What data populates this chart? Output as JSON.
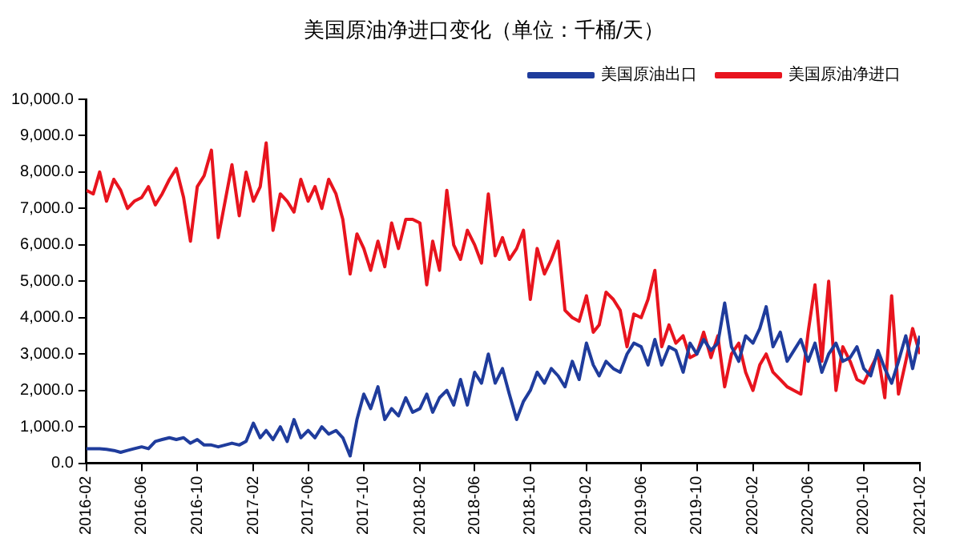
{
  "chart_data": {
    "type": "line",
    "title": "美国原油净进口变化（单位：千桶/天）",
    "x": [
      "2016-02-01",
      "2016-02-16",
      "2016-03-01",
      "2016-03-16",
      "2016-04-01",
      "2016-04-16",
      "2016-05-01",
      "2016-05-16",
      "2016-06-01",
      "2016-06-16",
      "2016-07-01",
      "2016-07-16",
      "2016-08-01",
      "2016-08-16",
      "2016-09-01",
      "2016-09-16",
      "2016-10-01",
      "2016-10-16",
      "2016-11-01",
      "2016-11-16",
      "2016-12-01",
      "2016-12-16",
      "2017-01-01",
      "2017-01-16",
      "2017-02-01",
      "2017-02-16",
      "2017-03-01",
      "2017-03-16",
      "2017-04-01",
      "2017-04-16",
      "2017-05-01",
      "2017-05-16",
      "2017-06-01",
      "2017-06-16",
      "2017-07-01",
      "2017-07-16",
      "2017-08-01",
      "2017-08-16",
      "2017-09-01",
      "2017-09-16",
      "2017-10-01",
      "2017-10-16",
      "2017-11-01",
      "2017-11-16",
      "2017-12-01",
      "2017-12-16",
      "2018-01-01",
      "2018-01-16",
      "2018-02-01",
      "2018-02-16",
      "2018-03-01",
      "2018-03-16",
      "2018-04-01",
      "2018-04-16",
      "2018-05-01",
      "2018-05-16",
      "2018-06-01",
      "2018-06-16",
      "2018-07-01",
      "2018-07-16",
      "2018-08-01",
      "2018-08-16",
      "2018-09-01",
      "2018-09-16",
      "2018-10-01",
      "2018-10-16",
      "2018-11-01",
      "2018-11-16",
      "2018-12-01",
      "2018-12-16",
      "2019-01-01",
      "2019-01-16",
      "2019-02-01",
      "2019-02-16",
      "2019-03-01",
      "2019-03-16",
      "2019-04-01",
      "2019-04-16",
      "2019-05-01",
      "2019-05-16",
      "2019-06-01",
      "2019-06-16",
      "2019-07-01",
      "2019-07-16",
      "2019-08-01",
      "2019-08-16",
      "2019-09-01",
      "2019-09-16",
      "2019-10-01",
      "2019-10-16",
      "2019-11-01",
      "2019-11-16",
      "2019-12-01",
      "2019-12-16",
      "2020-01-01",
      "2020-01-16",
      "2020-02-01",
      "2020-02-16",
      "2020-03-01",
      "2020-03-16",
      "2020-04-01",
      "2020-04-16",
      "2020-05-01",
      "2020-05-16",
      "2020-06-01",
      "2020-06-16",
      "2020-07-01",
      "2020-07-16",
      "2020-08-01",
      "2020-08-16",
      "2020-09-01",
      "2020-09-16",
      "2020-10-01",
      "2020-10-16",
      "2020-11-01",
      "2020-11-16",
      "2020-12-01",
      "2020-12-16",
      "2021-01-01",
      "2021-01-16",
      "2021-02-01"
    ],
    "series": [
      {
        "name": "美国原油出口",
        "color": "#1f3c9c",
        "values": [
          400,
          400,
          400,
          380,
          350,
          300,
          350,
          400,
          450,
          400,
          600,
          650,
          700,
          650,
          700,
          550,
          650,
          500,
          500,
          450,
          500,
          550,
          500,
          600,
          1100,
          700,
          900,
          650,
          1000,
          600,
          1200,
          700,
          900,
          700,
          1000,
          800,
          900,
          700,
          200,
          1200,
          1900,
          1500,
          2100,
          1200,
          1500,
          1300,
          1800,
          1400,
          1500,
          1900,
          1400,
          1800,
          2000,
          1600,
          2300,
          1600,
          2500,
          2200,
          3000,
          2200,
          2600,
          1900,
          1200,
          1700,
          2000,
          2500,
          2200,
          2600,
          2400,
          2100,
          2800,
          2300,
          3300,
          2700,
          2400,
          2800,
          2600,
          2500,
          3000,
          3300,
          3200,
          2700,
          3400,
          2700,
          3200,
          3100,
          2500,
          3300,
          3000,
          3400,
          3100,
          3300,
          4400,
          3200,
          2800,
          3500,
          3300,
          3700,
          4300,
          3200,
          3600,
          2800,
          3100,
          3400,
          2800,
          3300,
          2500,
          3000,
          3300,
          2800,
          2900,
          3200,
          2600,
          2400,
          3100,
          2600,
          2200,
          2800,
          3500,
          2600,
          3500
        ]
      },
      {
        "name": "美国原油净进口",
        "color": "#e8141e",
        "values": [
          7500,
          7400,
          8000,
          7200,
          7800,
          7500,
          7000,
          7200,
          7300,
          7600,
          7100,
          7400,
          7800,
          8100,
          7300,
          6100,
          7600,
          7900,
          8600,
          6200,
          7200,
          8200,
          6800,
          8000,
          7200,
          7600,
          8800,
          6400,
          7400,
          7200,
          6900,
          7800,
          7200,
          7600,
          7000,
          7800,
          7400,
          6700,
          5200,
          6300,
          5900,
          5300,
          6100,
          5400,
          6600,
          5900,
          6700,
          6700,
          6600,
          4900,
          6100,
          5300,
          7500,
          6000,
          5600,
          6400,
          6000,
          5500,
          7400,
          5700,
          6200,
          5600,
          5900,
          6400,
          4500,
          5900,
          5200,
          5600,
          6100,
          4200,
          4000,
          3900,
          4600,
          3600,
          3800,
          4700,
          4500,
          4200,
          3200,
          4100,
          4000,
          4500,
          5300,
          3200,
          3800,
          3300,
          3500,
          2900,
          3000,
          3600,
          2900,
          3500,
          2100,
          3000,
          3300,
          2500,
          2000,
          2700,
          3000,
          2500,
          2300,
          2100,
          2000,
          1900,
          3600,
          4900,
          2800,
          5000,
          2000,
          3200,
          2800,
          2300,
          2200,
          2600,
          3000,
          1800,
          4600,
          1900,
          2800,
          3700,
          3000
        ]
      }
    ],
    "xlim": [
      "2016-02",
      "2021-02"
    ],
    "xticks": [
      "2016-02",
      "2016-06",
      "2016-10",
      "2017-02",
      "2017-06",
      "2017-10",
      "2018-02",
      "2018-06",
      "2018-10",
      "2019-02",
      "2019-06",
      "2019-10",
      "2020-02",
      "2020-06",
      "2020-10",
      "2021-02"
    ],
    "ylim": [
      0,
      10000
    ],
    "yticks": [
      {
        "value": 0,
        "label": "0.0"
      },
      {
        "value": 1000,
        "label": "1,000.0"
      },
      {
        "value": 2000,
        "label": "2,000.0"
      },
      {
        "value": 3000,
        "label": "3,000.0"
      },
      {
        "value": 4000,
        "label": "4,000.0"
      },
      {
        "value": 5000,
        "label": "5,000.0"
      },
      {
        "value": 6000,
        "label": "6,000.0"
      },
      {
        "value": 7000,
        "label": "7,000.0"
      },
      {
        "value": 8000,
        "label": "8,000.0"
      },
      {
        "value": 9000,
        "label": "9,000.0"
      },
      {
        "value": 10000,
        "label": "10,000.0"
      }
    ],
    "grid": false,
    "legend": "top",
    "marker": "none",
    "line_style": "solid"
  }
}
